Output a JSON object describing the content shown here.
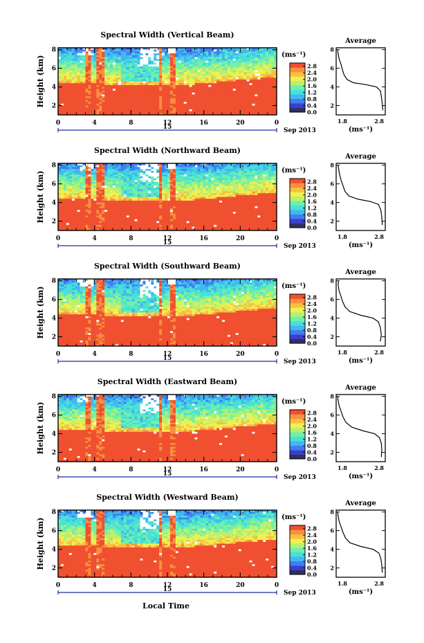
{
  "x_axis_title": "Local Time",
  "date_label": "Sep 2013",
  "day_label": "15",
  "unit_label": "(ms⁻¹)",
  "average_title": "Average",
  "ylabel": "Height (km)",
  "colors": {
    "palette": [
      "#303060",
      "#3a3fd0",
      "#3f7ff0",
      "#40b8f0",
      "#48e0d8",
      "#70f0a8",
      "#b8f070",
      "#f0f050",
      "#f8c040",
      "#f89040",
      "#f05030"
    ],
    "missing": "#ffffff",
    "strong": "#f44a3a"
  },
  "chart_data": [
    {
      "type": "heatmap",
      "title": "Spectral Width (Vertical Beam)",
      "xlabel": "",
      "ylabel": "Height (km)",
      "x_ticks": [
        "0",
        "4",
        "8",
        "12",
        "16",
        "20",
        "0"
      ],
      "xlim": [
        0,
        24
      ],
      "y_ticks": [
        "2",
        "4",
        "6",
        "8"
      ],
      "ylim": [
        1,
        8.2
      ],
      "colorbar": {
        "ticks": [
          "0.0",
          "0.4",
          "0.8",
          "1.2",
          "1.6",
          "2.0",
          "2.4",
          "2.8"
        ],
        "range": [
          0,
          3.0
        ]
      },
      "profile": {
        "title": "Average",
        "xlabel": "(ms⁻¹)",
        "x_ticks": [
          "1.8",
          "2.8"
        ],
        "xlim": [
          1.8,
          2.8
        ],
        "ylim": [
          1,
          8.2
        ],
        "points": [
          [
            2.75,
            1.5
          ],
          [
            2.74,
            2.2
          ],
          [
            2.72,
            3.0
          ],
          [
            2.7,
            3.6
          ],
          [
            2.62,
            4.0
          ],
          [
            2.4,
            4.25
          ],
          [
            2.15,
            4.45
          ],
          [
            2.02,
            4.8
          ],
          [
            1.96,
            5.3
          ],
          [
            1.93,
            5.8
          ],
          [
            1.9,
            6.4
          ],
          [
            1.86,
            7.0
          ],
          [
            1.84,
            7.6
          ],
          [
            1.83,
            8.0
          ]
        ]
      }
    },
    {
      "type": "heatmap",
      "title": "Spectral Width (Northward Beam)",
      "xlabel": "",
      "ylabel": "Height (km)",
      "x_ticks": [
        "0",
        "4",
        "8",
        "12",
        "16",
        "20",
        "0"
      ],
      "xlim": [
        0,
        24
      ],
      "y_ticks": [
        "2",
        "4",
        "6",
        "8"
      ],
      "ylim": [
        1,
        8.2
      ],
      "colorbar": {
        "ticks": [
          "0.0",
          "0.4",
          "0.8",
          "1.2",
          "1.6",
          "2.0",
          "2.4",
          "2.8"
        ],
        "range": [
          0,
          3.0
        ]
      },
      "profile": {
        "title": "Average",
        "xlabel": "(ms⁻¹)",
        "x_ticks": [
          "1.8",
          "2.8"
        ],
        "xlim": [
          1.8,
          2.8
        ],
        "ylim": [
          1,
          8.2
        ],
        "points": [
          [
            2.74,
            1.6
          ],
          [
            2.73,
            2.4
          ],
          [
            2.71,
            3.2
          ],
          [
            2.66,
            3.8
          ],
          [
            2.5,
            4.1
          ],
          [
            2.25,
            4.35
          ],
          [
            2.06,
            4.7
          ],
          [
            1.98,
            5.2
          ],
          [
            1.94,
            5.8
          ],
          [
            1.9,
            6.4
          ],
          [
            1.87,
            7.0
          ],
          [
            1.85,
            7.6
          ],
          [
            1.84,
            8.0
          ]
        ]
      }
    },
    {
      "type": "heatmap",
      "title": "Spectral Width (Southward Beam)",
      "xlabel": "",
      "ylabel": "Height (km)",
      "x_ticks": [
        "0",
        "4",
        "8",
        "12",
        "16",
        "20",
        "0"
      ],
      "xlim": [
        0,
        24
      ],
      "y_ticks": [
        "2",
        "4",
        "6",
        "8"
      ],
      "ylim": [
        1,
        8.2
      ],
      "colorbar": {
        "ticks": [
          "0.0",
          "0.4",
          "0.8",
          "1.2",
          "1.6",
          "2.0",
          "2.4",
          "2.8"
        ],
        "range": [
          0,
          3.0
        ]
      },
      "profile": {
        "title": "Average",
        "xlabel": "(ms⁻¹)",
        "x_ticks": [
          "1.8",
          "2.8"
        ],
        "xlim": [
          1.8,
          2.8
        ],
        "ylim": [
          1,
          8.2
        ],
        "points": [
          [
            2.7,
            1.5
          ],
          [
            2.72,
            2.2
          ],
          [
            2.7,
            3.0
          ],
          [
            2.66,
            3.6
          ],
          [
            2.55,
            4.0
          ],
          [
            2.3,
            4.3
          ],
          [
            2.08,
            4.7
          ],
          [
            1.98,
            5.2
          ],
          [
            1.93,
            5.8
          ],
          [
            1.9,
            6.3
          ],
          [
            1.86,
            6.9
          ],
          [
            1.84,
            7.6
          ],
          [
            1.85,
            8.0
          ]
        ]
      }
    },
    {
      "type": "heatmap",
      "title": "Spectral Width (Eastward Beam)",
      "xlabel": "",
      "ylabel": "Height (km)",
      "x_ticks": [
        "0",
        "4",
        "8",
        "12",
        "16",
        "20",
        "0"
      ],
      "xlim": [
        0,
        24
      ],
      "y_ticks": [
        "2",
        "4",
        "6",
        "8"
      ],
      "ylim": [
        1,
        8.2
      ],
      "colorbar": {
        "ticks": [
          "0.0",
          "0.4",
          "0.8",
          "1.2",
          "1.6",
          "2.0",
          "2.4",
          "2.8"
        ],
        "range": [
          0,
          3.0
        ]
      },
      "profile": {
        "title": "Average",
        "xlabel": "(ms⁻¹)",
        "x_ticks": [
          "1.8",
          "2.8"
        ],
        "xlim": [
          1.8,
          2.8
        ],
        "ylim": [
          1,
          8.2
        ],
        "points": [
          [
            2.72,
            1.5
          ],
          [
            2.73,
            2.3
          ],
          [
            2.72,
            3.0
          ],
          [
            2.68,
            3.6
          ],
          [
            2.58,
            4.0
          ],
          [
            2.35,
            4.3
          ],
          [
            2.12,
            4.7
          ],
          [
            2.0,
            5.2
          ],
          [
            1.94,
            5.8
          ],
          [
            1.9,
            6.4
          ],
          [
            1.86,
            7.0
          ],
          [
            1.84,
            7.6
          ],
          [
            1.83,
            8.0
          ]
        ]
      }
    },
    {
      "type": "heatmap",
      "title": "Spectral Width (Westward Beam)",
      "xlabel": "Local Time",
      "ylabel": "Height (km)",
      "x_ticks": [
        "0",
        "4",
        "8",
        "12",
        "16",
        "20",
        "0"
      ],
      "xlim": [
        0,
        24
      ],
      "y_ticks": [
        "2",
        "4",
        "6",
        "8"
      ],
      "ylim": [
        1,
        8.2
      ],
      "colorbar": {
        "ticks": [
          "0.0",
          "0.4",
          "0.8",
          "1.2",
          "1.6",
          "2.0",
          "2.4",
          "2.8"
        ],
        "range": [
          0,
          3.0
        ]
      },
      "profile": {
        "title": "Average",
        "xlabel": "(ms⁻¹)",
        "x_ticks": [
          "1.8",
          "2.8"
        ],
        "xlim": [
          1.8,
          2.8
        ],
        "ylim": [
          1,
          8.2
        ],
        "points": [
          [
            2.74,
            1.5
          ],
          [
            2.73,
            2.3
          ],
          [
            2.71,
            3.0
          ],
          [
            2.67,
            3.6
          ],
          [
            2.55,
            4.0
          ],
          [
            2.3,
            4.3
          ],
          [
            2.08,
            4.7
          ],
          [
            1.99,
            5.2
          ],
          [
            1.94,
            5.8
          ],
          [
            1.9,
            6.4
          ],
          [
            1.86,
            7.0
          ],
          [
            1.84,
            7.6
          ],
          [
            1.83,
            8.0
          ]
        ]
      }
    }
  ]
}
